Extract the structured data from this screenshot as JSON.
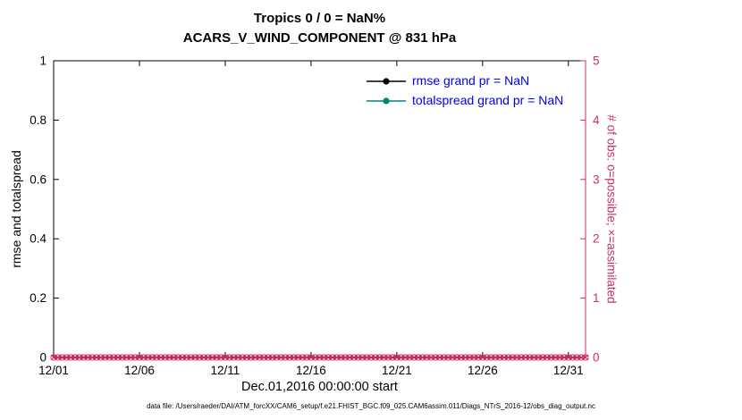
{
  "chart_data": {
    "type": "line",
    "title": "Tropics 0 / 0 = NaN%",
    "subtitle": "ACARS_V_WIND_COMPONENT @ 831 hPa",
    "xlabel": "Dec.01,2016 00:00:00 start",
    "ylabel_left": "rmse and totalspread",
    "ylabel_right": "# of obs: o=possible; ×=assimilated",
    "footer": "data file: /Users/raeder/DAI/ATM_forcXX/CAM6_setup/f.e21.FHIST_BGC.f09_025.CAM6assim.011/Diags_NTrS_2016-12/obs_diag_output.nc",
    "grid": "off",
    "legend_position": "upper-center-right, no box",
    "legend_text_color": "#0000ee",
    "x_axis": {
      "tick_labels": [
        "12/01",
        "12/06",
        "12/11",
        "12/16",
        "12/21",
        "12/26",
        "12/31"
      ],
      "tick_days": [
        0,
        5,
        10,
        15,
        20,
        25,
        30
      ],
      "range_days": [
        0,
        31
      ]
    },
    "y_left": {
      "ticks": [
        0,
        0.2,
        0.4,
        0.6,
        0.8,
        1
      ],
      "range": [
        0,
        1
      ],
      "color": "#000000"
    },
    "y_right": {
      "ticks": [
        0,
        1,
        2,
        3,
        4,
        5
      ],
      "range": [
        0,
        5
      ],
      "color": "#ce2f63"
    },
    "series": [
      {
        "name": "rmse",
        "legend": "rmse grand pr = NaN",
        "color": "#000000",
        "values": "NaN (no curve plotted)"
      },
      {
        "name": "totalspread",
        "legend": "totalspread grand pr = NaN",
        "color": "#00857c",
        "values": "NaN (no curve plotted)"
      }
    ],
    "obs_counts": {
      "description": "observation counts plotted on right axis; both possible (o) and assimilated (x) equal 0 at every time",
      "possible_marker": "o",
      "assimilated_marker": "x",
      "color": "#ce2f63",
      "start_day": 0,
      "end_day": 31,
      "interval_days": 0.25,
      "value": 0
    }
  }
}
